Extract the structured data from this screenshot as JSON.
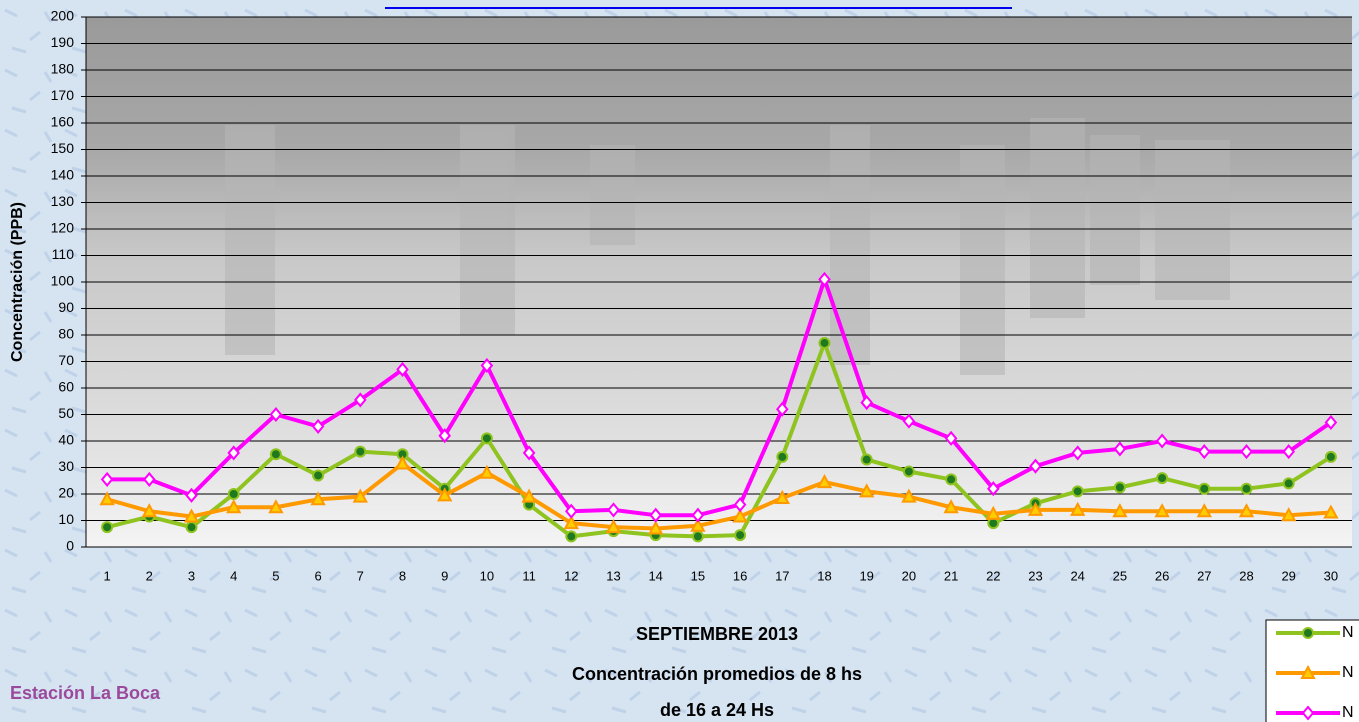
{
  "chart_data": {
    "type": "line",
    "title": "SEPTIEMBRE 2013",
    "subtitle": [
      "Concentración promedios de 8 hs",
      "de 16 a 24 Hs"
    ],
    "y_label": "Concentración  (PPB)",
    "categories": [
      "1",
      "2",
      "3",
      "4",
      "5",
      "6",
      "7",
      "8",
      "9",
      "10",
      "11",
      "12",
      "13",
      "14",
      "15",
      "16",
      "17",
      "18",
      "19",
      "20",
      "21",
      "22",
      "23",
      "24",
      "25",
      "26",
      "27",
      "28",
      "29",
      "30"
    ],
    "series": [
      {
        "name": "N",
        "color": "#8fc31f",
        "marker": "circle",
        "marker_fill": "#1f7a1f",
        "values": [
          7.5,
          11.5,
          7.5,
          20,
          35,
          27,
          36,
          35,
          22,
          41,
          16,
          4,
          6,
          4.5,
          4,
          4.5,
          34,
          77,
          33,
          28.5,
          25.5,
          9,
          16.5,
          21,
          22.5,
          26,
          22,
          22,
          24,
          34
        ]
      },
      {
        "name": "N",
        "color": "#ff9900",
        "marker": "triangle",
        "marker_fill": "#ffcc00",
        "values": [
          18,
          13.5,
          11.5,
          15,
          15,
          18,
          19,
          31.5,
          19.5,
          28,
          19,
          9,
          7.5,
          7,
          8,
          11.5,
          18.5,
          24.5,
          21,
          19,
          15,
          12.5,
          14,
          14,
          13.5,
          13.5,
          13.5,
          13.5,
          12,
          13
        ]
      },
      {
        "name": "N",
        "color": "#ff00ff",
        "marker": "diamond",
        "marker_fill": "#ffffff",
        "values": [
          25.5,
          25.5,
          19.5,
          35.5,
          50,
          45.5,
          55.5,
          67,
          42,
          68.5,
          35.5,
          13.5,
          14,
          12,
          12,
          16,
          52,
          101,
          54.5,
          47.5,
          41,
          22,
          30.5,
          35.5,
          37,
          40,
          36,
          36,
          36,
          47
        ]
      }
    ],
    "ylim": [
      0,
      200
    ],
    "yticks": [
      0,
      10,
      20,
      30,
      40,
      50,
      60,
      70,
      80,
      90,
      100,
      110,
      120,
      130,
      140,
      150,
      160,
      170,
      180,
      190,
      200
    ],
    "grid": true
  },
  "station": "Estación La Boca"
}
